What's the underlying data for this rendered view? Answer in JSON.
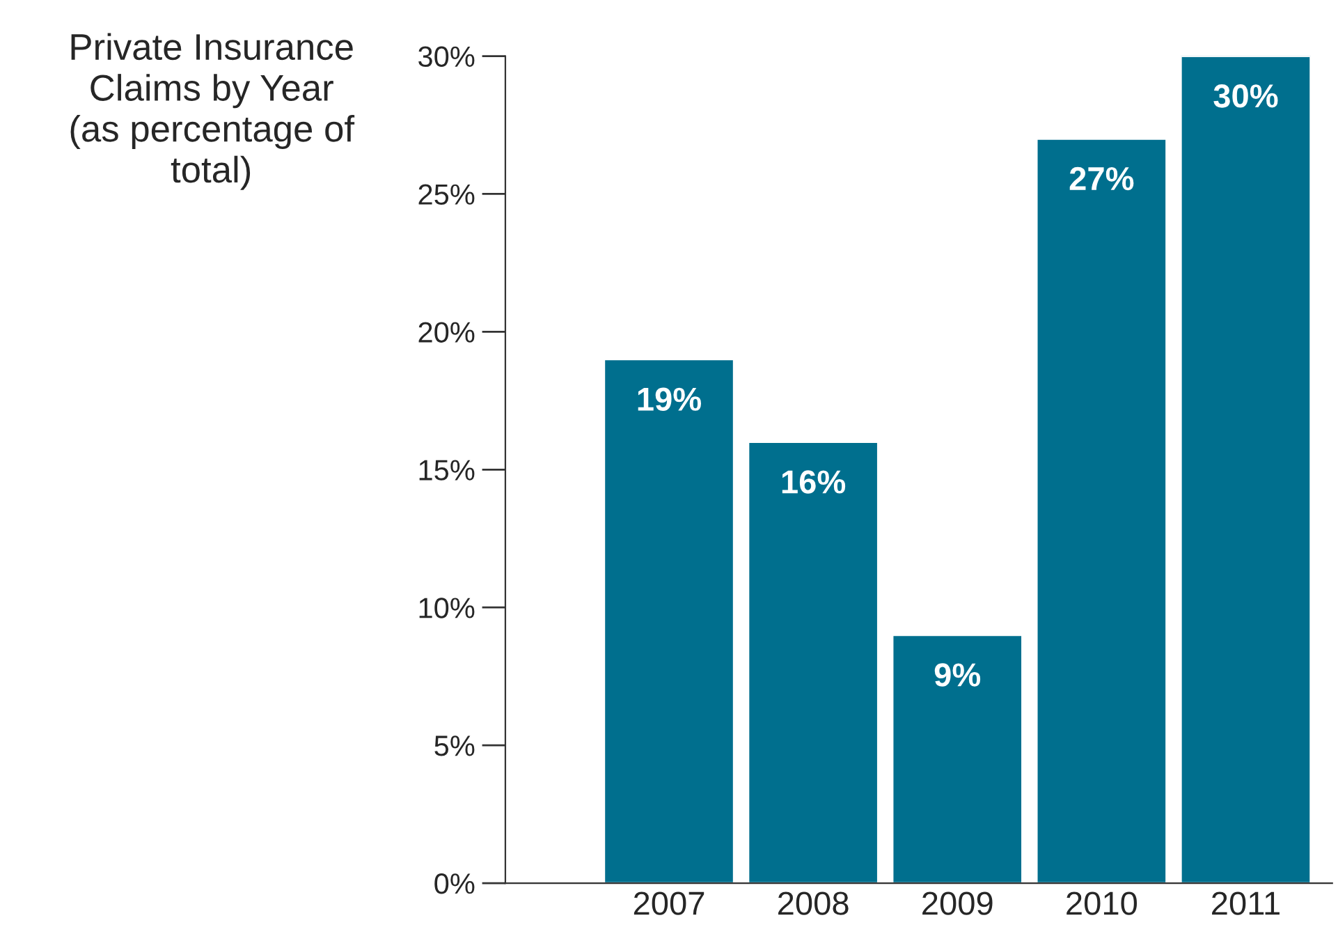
{
  "chart_data": {
    "type": "bar",
    "title": "Private Insurance\nClaims by Year\n(as percentage of\ntotal)",
    "categories": [
      "2007",
      "2008",
      "2009",
      "2010",
      "2011"
    ],
    "values": [
      19,
      16,
      9,
      27,
      30
    ],
    "color": "#006f8e",
    "value_labels": [
      "19%",
      "16%",
      "9%",
      "27%",
      "30%"
    ],
    "ylim": [
      0,
      30
    ],
    "yticks": [
      {
        "value": 0,
        "label": "0%"
      },
      {
        "value": 5,
        "label": "5%"
      },
      {
        "value": 10,
        "label": "10%"
      },
      {
        "value": 15,
        "label": "15%"
      },
      {
        "value": 20,
        "label": "20%"
      },
      {
        "value": 25,
        "label": "25%"
      },
      {
        "value": 30,
        "label": "30%"
      }
    ],
    "grid": false,
    "legend": false
  }
}
